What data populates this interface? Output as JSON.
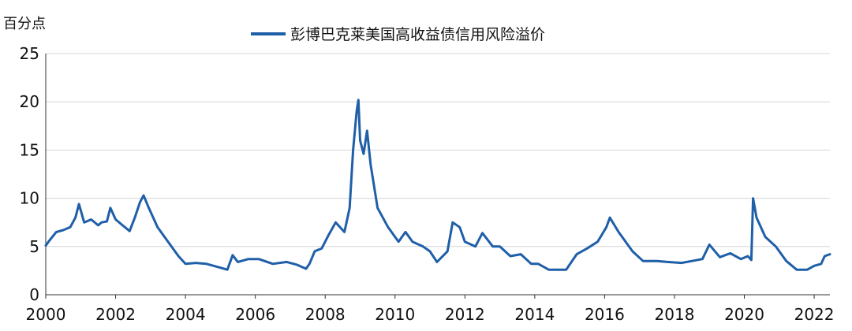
{
  "chart_data": {
    "type": "line",
    "title": "",
    "ylabel": "百分点",
    "xlabel": "",
    "xlim": [
      2000,
      2022.45
    ],
    "ylim": [
      0,
      25
    ],
    "yticks": [
      "0",
      "5",
      "10",
      "15",
      "20",
      "25"
    ],
    "xticks": [
      "2000",
      "2002",
      "2004",
      "2006",
      "2008",
      "2010",
      "2012",
      "2014",
      "2016",
      "2018",
      "2020",
      "2022"
    ],
    "grid": "horizontal",
    "legend_position": "top-center",
    "series": [
      {
        "name": "彭博巴克莱美国高收益债信用风险溢价",
        "color": "#1f5fa8",
        "x": [
          2000.0,
          2000.1,
          2000.3,
          2000.5,
          2000.7,
          2000.85,
          2000.95,
          2001.1,
          2001.3,
          2001.5,
          2001.6,
          2001.75,
          2001.85,
          2002.0,
          2002.2,
          2002.4,
          2002.55,
          2002.7,
          2002.8,
          2002.95,
          2003.2,
          2003.5,
          2003.8,
          2004.0,
          2004.3,
          2004.6,
          2005.0,
          2005.2,
          2005.35,
          2005.5,
          2005.8,
          2006.1,
          2006.5,
          2006.9,
          2007.2,
          2007.45,
          2007.55,
          2007.7,
          2007.9,
          2008.1,
          2008.3,
          2008.55,
          2008.7,
          2008.8,
          2008.9,
          2008.95,
          2009.0,
          2009.1,
          2009.2,
          2009.3,
          2009.5,
          2009.8,
          2010.1,
          2010.3,
          2010.5,
          2010.8,
          2011.0,
          2011.2,
          2011.5,
          2011.65,
          2011.85,
          2012.0,
          2012.3,
          2012.5,
          2012.8,
          2013.0,
          2013.3,
          2013.6,
          2013.9,
          2014.1,
          2014.4,
          2014.9,
          2015.2,
          2015.5,
          2015.8,
          2016.05,
          2016.15,
          2016.4,
          2016.8,
          2017.1,
          2017.5,
          2017.8,
          2018.2,
          2018.5,
          2018.8,
          2019.0,
          2019.3,
          2019.6,
          2019.9,
          2020.1,
          2020.2,
          2020.25,
          2020.35,
          2020.6,
          2020.9,
          2021.2,
          2021.5,
          2021.8,
          2022.0,
          2022.2,
          2022.3,
          2022.45
        ],
        "y": [
          5.1,
          5.6,
          6.5,
          6.7,
          7.0,
          8.0,
          9.4,
          7.5,
          7.8,
          7.2,
          7.5,
          7.6,
          9.0,
          7.8,
          7.2,
          6.6,
          8.0,
          9.6,
          10.3,
          9.0,
          7.0,
          5.5,
          4.0,
          3.2,
          3.3,
          3.2,
          2.8,
          2.6,
          4.1,
          3.4,
          3.7,
          3.7,
          3.2,
          3.4,
          3.1,
          2.7,
          3.2,
          4.5,
          4.8,
          6.2,
          7.5,
          6.5,
          9.0,
          15.0,
          19.0,
          20.2,
          16.0,
          14.6,
          17.0,
          13.5,
          9.0,
          7.0,
          5.5,
          6.5,
          5.5,
          5.0,
          4.5,
          3.4,
          4.5,
          7.5,
          7.0,
          5.5,
          5.0,
          6.4,
          5.0,
          5.0,
          4.0,
          4.2,
          3.2,
          3.2,
          2.6,
          2.6,
          4.2,
          4.8,
          5.5,
          7.0,
          8.0,
          6.5,
          4.5,
          3.5,
          3.5,
          3.4,
          3.3,
          3.5,
          3.7,
          5.2,
          3.9,
          4.3,
          3.7,
          4.0,
          3.6,
          10.0,
          8.0,
          6.0,
          5.0,
          3.5,
          2.6,
          2.6,
          3.0,
          3.2,
          4.0,
          4.2
        ]
      }
    ]
  }
}
